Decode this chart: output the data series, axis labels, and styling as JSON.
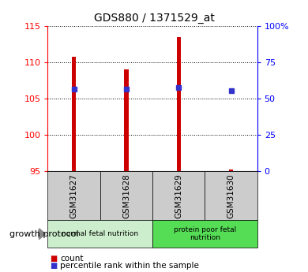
{
  "title": "GDS880 / 1371529_at",
  "samples": [
    "GSM31627",
    "GSM31628",
    "GSM31629",
    "GSM31630"
  ],
  "bar_bottoms": [
    95,
    95,
    95,
    95
  ],
  "bar_tops": [
    110.8,
    109.0,
    113.5,
    95.3
  ],
  "blue_y": [
    106.3,
    106.3,
    106.5,
    106.1
  ],
  "ylim": [
    95,
    115
  ],
  "yticks_left": [
    95,
    100,
    105,
    110,
    115
  ],
  "yticks_right": [
    0,
    25,
    50,
    75,
    100
  ],
  "bar_color": "#cc0000",
  "blue_color": "#3333cc",
  "group1_label": "normal fetal nutrition",
  "group2_label": "protein poor fetal\nnutrition",
  "group1_indices": [
    0,
    1
  ],
  "group2_indices": [
    2,
    3
  ],
  "group1_bg": "#cceecc",
  "group2_bg": "#55dd55",
  "tick_label_bg": "#cccccc",
  "growth_protocol_label": "growth protocol",
  "legend_count_label": "count",
  "legend_pct_label": "percentile rank within the sample",
  "bar_width": 0.08
}
